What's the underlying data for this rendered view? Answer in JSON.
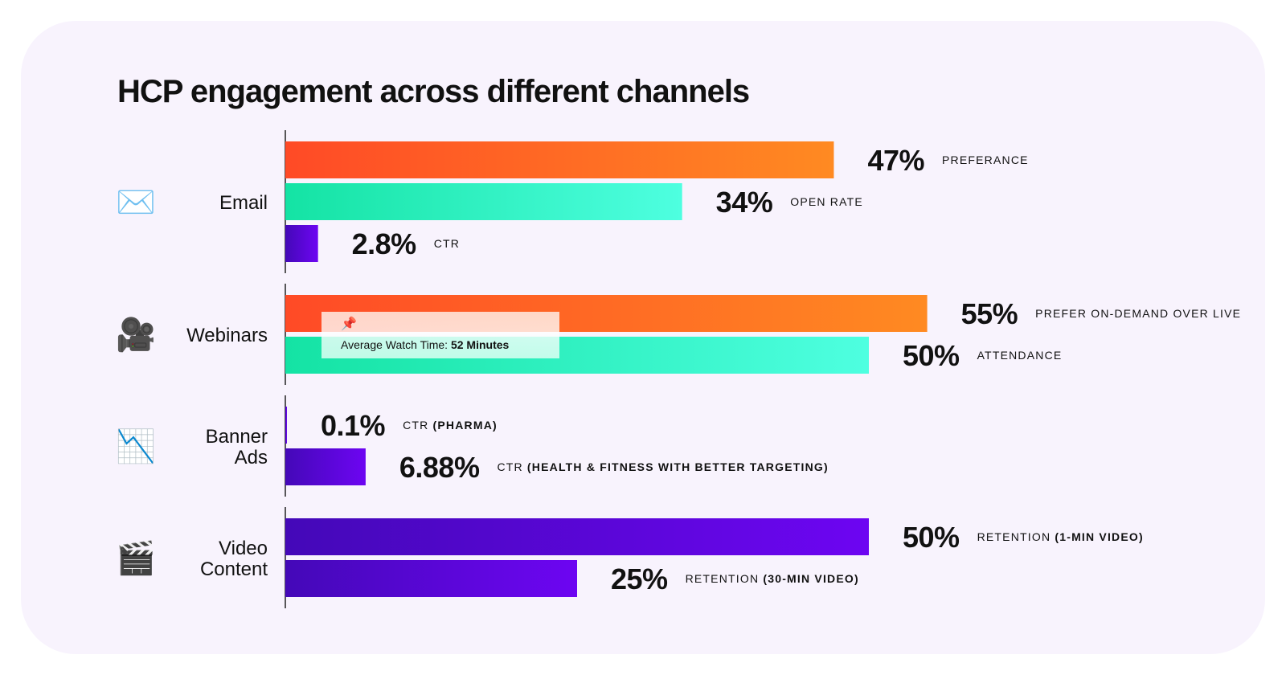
{
  "title": "HCP engagement across different channels",
  "chart_data": {
    "type": "bar",
    "orientation": "horizontal",
    "title": "HCP engagement across different channels",
    "xlim": [
      0,
      55
    ],
    "unit": "%",
    "groups": [
      {
        "category": "Email",
        "label_lines": [
          "Email"
        ],
        "icon": "envelope-icon",
        "emoji": "✉️",
        "bars": [
          {
            "value": 47,
            "display": "47%",
            "metric": "PREFERANCE",
            "qualifier": "",
            "style": "orange"
          },
          {
            "value": 34,
            "display": "34%",
            "metric": "OPEN RATE",
            "qualifier": "",
            "style": "teal"
          },
          {
            "value": 2.8,
            "display": "2.8%",
            "metric": "CTR",
            "qualifier": "",
            "style": "purple"
          }
        ]
      },
      {
        "category": "Webinars",
        "label_lines": [
          "Webinars"
        ],
        "icon": "movie-camera-icon",
        "emoji": "🎥",
        "bars": [
          {
            "value": 55,
            "display": "55%",
            "metric": "PREFER ON-DEMAND OVER LIVE",
            "qualifier": "",
            "style": "orange"
          },
          {
            "value": 50,
            "display": "50%",
            "metric": "ATTENDANCE",
            "qualifier": "",
            "style": "teal"
          }
        ]
      },
      {
        "category": "Banner Ads",
        "label_lines": [
          "Banner",
          "Ads"
        ],
        "icon": "chart-decreasing-icon",
        "emoji": "📉",
        "bars": [
          {
            "value": 0.1,
            "display": "0.1%",
            "metric": "CTR",
            "qualifier": "(PHARMA)",
            "style": "purple"
          },
          {
            "value": 6.88,
            "display": "6.88%",
            "metric": "CTR",
            "qualifier": "(HEALTH & FITNESS WITH BETTER TARGETING)",
            "style": "purple"
          }
        ]
      },
      {
        "category": "Video Content",
        "label_lines": [
          "Video",
          "Content"
        ],
        "icon": "clapper-board-icon",
        "emoji": "🎬",
        "bars": [
          {
            "value": 50,
            "display": "50%",
            "metric": "RETENTION",
            "qualifier": "(1-MIN VIDEO)",
            "style": "purple"
          },
          {
            "value": 25,
            "display": "25%",
            "metric": "RETENTION",
            "qualifier": "(30-MIN VIDEO)",
            "style": "purple"
          }
        ]
      }
    ],
    "annotation": {
      "icon": "pushpin-icon",
      "emoji": "📌",
      "text": "Average Watch Time: ",
      "emphasis": "52 Minutes",
      "attached_to": "Webinars"
    },
    "colors": {
      "orange": [
        "#ff4a26",
        "#ff8a22"
      ],
      "teal": [
        "#14e3a4",
        "#4effe0"
      ],
      "purple": [
        "#4408b8",
        "#6d05f2"
      ],
      "axis": "#222222"
    }
  }
}
